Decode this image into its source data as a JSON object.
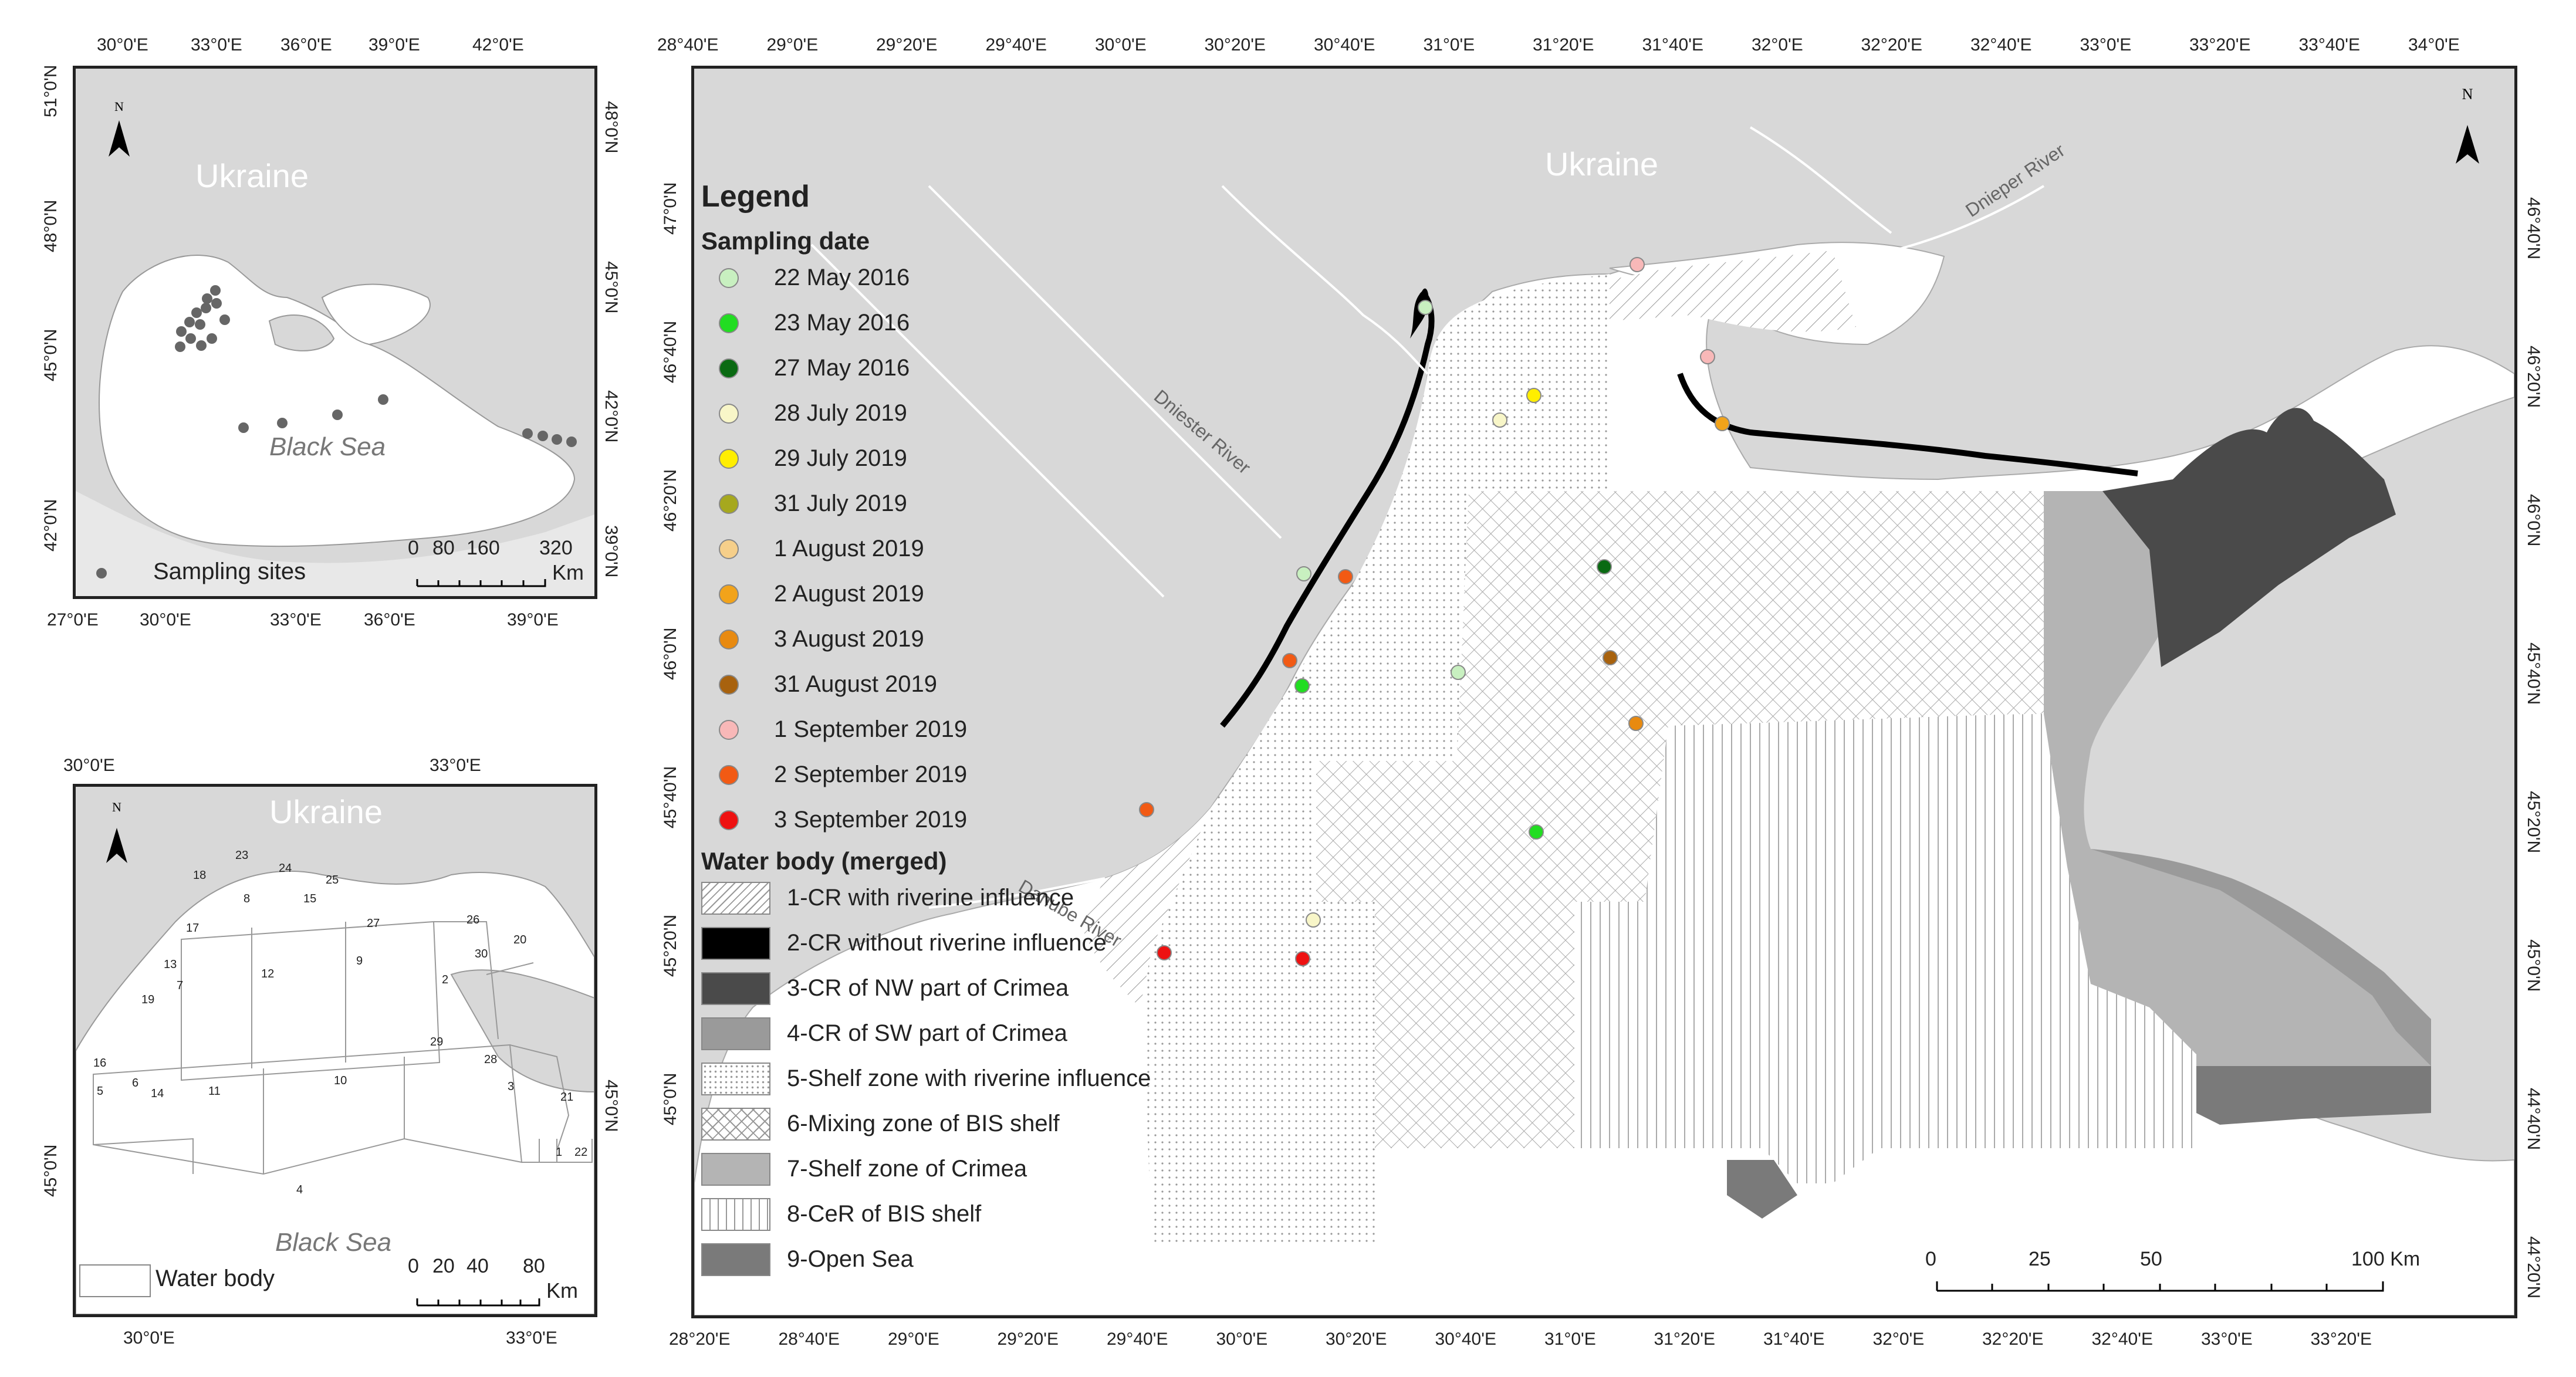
{
  "colors": {
    "land": "#d8d8d8",
    "land_light": "#e8e8e8",
    "sea": "#ffffff",
    "river": "#ffffff",
    "coastline": "#000000",
    "sampling_sites_small": "#666666"
  },
  "map_top": {
    "country_label": "Ukraine",
    "sea_label": "Black Sea",
    "north_label": "N",
    "legend_label": "Sampling sites",
    "scale_labels": [
      "0",
      "80",
      "160",
      "320"
    ],
    "scale_unit": "Km",
    "top_ticks": [
      "30°0'E",
      "33°0'E",
      "36°0'E",
      "39°0'E",
      "42°0'E"
    ],
    "bottom_ticks": [
      "27°0'E",
      "30°0'E",
      "33°0'E",
      "36°0'E",
      "39°0'E"
    ],
    "left_ticks": [
      "51°0'N",
      "48°0'N",
      "45°0'N",
      "42°0'N"
    ],
    "right_ticks": [
      "48°0'N",
      "45°0'N",
      "42°0'N",
      "39°0'N"
    ]
  },
  "map_bottom": {
    "country_label": "Ukraine",
    "sea_label": "Black Sea",
    "north_label": "N",
    "legend_label": "Water body",
    "scale_labels": [
      "0",
      "20",
      "40",
      "80"
    ],
    "scale_unit": "Km",
    "top_ticks": [
      "30°0'E",
      "33°0'E"
    ],
    "bottom_ticks": [
      "30°0'E",
      "33°0'E"
    ],
    "left_ticks": [
      "45°0'N"
    ],
    "right_ticks": [
      "45°0'N"
    ],
    "water_body_numbers": [
      "1",
      "2",
      "3",
      "4",
      "5",
      "6",
      "7",
      "8",
      "9",
      "10",
      "11",
      "12",
      "13",
      "14",
      "15",
      "16",
      "17",
      "18",
      "19",
      "20",
      "21",
      "22",
      "23",
      "24",
      "25",
      "26",
      "27",
      "28",
      "29",
      "30"
    ]
  },
  "map_main": {
    "country_label": "Ukraine",
    "north_label": "N",
    "rivers": [
      "Dniester River",
      "Dnieper River",
      "Danube River"
    ],
    "scale_labels": [
      "0",
      "25",
      "50",
      "100 Km"
    ],
    "top_ticks": [
      "28°40'E",
      "29°0'E",
      "29°20'E",
      "29°40'E",
      "30°0'E",
      "30°20'E",
      "30°40'E",
      "31°0'E",
      "31°20'E",
      "31°40'E",
      "32°0'E",
      "32°20'E",
      "32°40'E",
      "33°0'E",
      "33°20'E",
      "33°40'E",
      "34°0'E"
    ],
    "bottom_ticks": [
      "28°20'E",
      "28°40'E",
      "29°0'E",
      "29°20'E",
      "29°40'E",
      "30°0'E",
      "30°20'E",
      "30°40'E",
      "31°0'E",
      "31°20'E",
      "31°40'E",
      "32°0'E",
      "32°20'E",
      "32°40'E",
      "33°0'E",
      "33°20'E"
    ],
    "left_ticks": [
      "47°0'N",
      "46°40'N",
      "46°20'N",
      "46°0'N",
      "45°40'N",
      "45°20'N",
      "45°0'N"
    ],
    "right_ticks": [
      "46°40'N",
      "46°20'N",
      "46°0'N",
      "45°40'N",
      "45°20'N",
      "45°0'N",
      "44°40'N",
      "44°20'N"
    ]
  },
  "legend": {
    "title": "Legend",
    "sampling_heading": "Sampling date",
    "sampling_dates": [
      {
        "label": "22 May 2016",
        "color": "#c8f0c0"
      },
      {
        "label": "23 May 2016",
        "color": "#22dd22"
      },
      {
        "label": "27 May 2016",
        "color": "#0a6a12"
      },
      {
        "label": "28 July 2019",
        "color": "#f8f6c8"
      },
      {
        "label": "29 July 2019",
        "color": "#ffee00"
      },
      {
        "label": "31 July 2019",
        "color": "#a6a81e"
      },
      {
        "label": "1 August 2019",
        "color": "#f6cf8a"
      },
      {
        "label": "2 August 2019",
        "color": "#f2a31a"
      },
      {
        "label": "3 August 2019",
        "color": "#e88a10"
      },
      {
        "label": "31 August 2019",
        "color": "#a8620e"
      },
      {
        "label": "1 September 2019",
        "color": "#f8b8b8"
      },
      {
        "label": "2 September 2019",
        "color": "#f25a14"
      },
      {
        "label": "3 September 2019",
        "color": "#ee1111"
      }
    ],
    "waterbody_heading": "Water body (merged)",
    "water_bodies": [
      {
        "label": "1-CR with riverine influence",
        "pattern": "hatch",
        "color": "#ffffff"
      },
      {
        "label": "2-CR without riverine influence",
        "pattern": "solid",
        "color": "#000000"
      },
      {
        "label": "3-CR of NW part of Crimea",
        "pattern": "solid",
        "color": "#4a4a4a"
      },
      {
        "label": "4-CR of SW part of Crimea",
        "pattern": "solid",
        "color": "#9a9a9a"
      },
      {
        "label": "5-Shelf zone with riverine influence",
        "pattern": "dots",
        "color": "#ffffff"
      },
      {
        "label": "6-Mixing zone of BIS shelf",
        "pattern": "cross",
        "color": "#ffffff"
      },
      {
        "label": "7-Shelf zone of Crimea",
        "pattern": "solid",
        "color": "#b4b4b4"
      },
      {
        "label": "8-CeR of BIS shelf",
        "pattern": "vert",
        "color": "#ffffff"
      },
      {
        "label": "9-Open Sea",
        "pattern": "solid",
        "color": "#7a7a7a"
      }
    ]
  }
}
